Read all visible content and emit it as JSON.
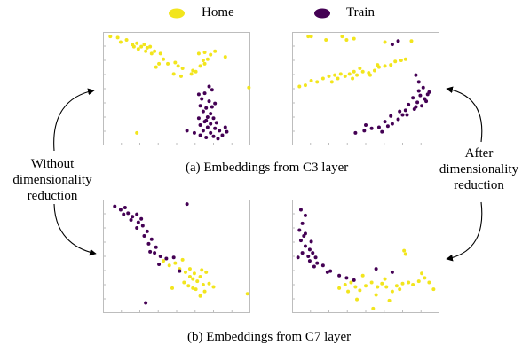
{
  "legend": {
    "home_label": "Home",
    "train_label": "Train",
    "home_color": "#F2E51D",
    "train_color": "#440154"
  },
  "captions": {
    "a": "(a) Embeddings from C3 layer",
    "b": "(b) Embeddings from C7 layer"
  },
  "left_label": [
    "Without",
    "dimensionality",
    "reduction"
  ],
  "right_label": [
    "After",
    "dimensionality",
    "reduction"
  ],
  "chart_data": [
    {
      "type": "scatter",
      "panel": "C3 without dimensionality reduction",
      "xlim": [
        0,
        10
      ],
      "ylim": [
        0,
        10
      ],
      "grid": false,
      "series": [
        {
          "name": "Home",
          "color": "#F2E51D",
          "points": [
            [
              0.5,
              9.6
            ],
            [
              1,
              9.5
            ],
            [
              1.2,
              9.1
            ],
            [
              1.6,
              9.3
            ],
            [
              2,
              8.9
            ],
            [
              2.1,
              8.7
            ],
            [
              2.3,
              9
            ],
            [
              2.4,
              8.5
            ],
            [
              2.6,
              8.7
            ],
            [
              2.8,
              8.9
            ],
            [
              3,
              8.6
            ],
            [
              3.2,
              8.7
            ],
            [
              2.9,
              8.3
            ],
            [
              3.3,
              8.1
            ],
            [
              3.5,
              8.3
            ],
            [
              3.9,
              8.1
            ],
            [
              4.1,
              7.6
            ],
            [
              3.8,
              7.2
            ],
            [
              3.6,
              6.9
            ],
            [
              4.4,
              7.2
            ],
            [
              4.9,
              7.3
            ],
            [
              5.1,
              7
            ],
            [
              5.4,
              6.8
            ],
            [
              4.8,
              6.3
            ],
            [
              5.3,
              6.1
            ],
            [
              6,
              6.3
            ],
            [
              6.3,
              6.5
            ],
            [
              6.6,
              7
            ],
            [
              6.9,
              7.2
            ],
            [
              7.1,
              7.6
            ],
            [
              7.3,
              8
            ],
            [
              6.9,
              8.2
            ],
            [
              6.5,
              8.1
            ],
            [
              7.6,
              8.3
            ],
            [
              8.3,
              7.8
            ],
            [
              9.9,
              5.1
            ],
            [
              2.3,
              1.1
            ],
            [
              6.1,
              6.6
            ],
            [
              6.8,
              7.5
            ]
          ]
        },
        {
          "name": "Train",
          "color": "#440154",
          "points": [
            [
              6.5,
              4.5
            ],
            [
              6.9,
              4.6
            ],
            [
              6.7,
              4.1
            ],
            [
              7.2,
              3.9
            ],
            [
              6.6,
              3.5
            ],
            [
              7,
              3.3
            ],
            [
              7.4,
              3.4
            ],
            [
              6.8,
              3
            ],
            [
              7.3,
              2.8
            ],
            [
              7.1,
              2.5
            ],
            [
              6.5,
              2.4
            ],
            [
              7.5,
              2.4
            ],
            [
              6.9,
              2.1
            ],
            [
              7.3,
              1.9
            ],
            [
              7.7,
              2
            ],
            [
              6.6,
              1.8
            ],
            [
              7.1,
              1.6
            ],
            [
              7.6,
              1.5
            ],
            [
              7.9,
              1.3
            ],
            [
              6.8,
              1.3
            ],
            [
              7.3,
              1.1
            ],
            [
              7.5,
              0.8
            ],
            [
              8.1,
              0.9
            ],
            [
              6.6,
              0.9
            ],
            [
              7,
              0.7
            ],
            [
              7.8,
              0.6
            ],
            [
              8.3,
              1.6
            ],
            [
              5.7,
              1.3
            ],
            [
              6.2,
              1.1
            ],
            [
              7.2,
              5.2
            ],
            [
              7.4,
              4.9
            ],
            [
              7.6,
              3.7
            ],
            [
              8.4,
              1.2
            ],
            [
              7,
              2.2
            ]
          ]
        }
      ]
    },
    {
      "type": "scatter",
      "panel": "C3 after dimensionality reduction",
      "xlim": [
        0,
        10
      ],
      "ylim": [
        0,
        10
      ],
      "grid": false,
      "series": [
        {
          "name": "Home",
          "color": "#F2E51D",
          "points": [
            [
              0.5,
              5.2
            ],
            [
              0.9,
              5.3
            ],
            [
              1.3,
              5.7
            ],
            [
              1.7,
              5.6
            ],
            [
              2.1,
              5.9
            ],
            [
              2.5,
              6.1
            ],
            [
              2.9,
              6.2
            ],
            [
              3.3,
              6.3
            ],
            [
              3.6,
              6.1
            ],
            [
              3.9,
              6.3
            ],
            [
              4.2,
              6.5
            ],
            [
              4.4,
              6.2
            ],
            [
              4.8,
              6.5
            ],
            [
              5.2,
              6.4
            ],
            [
              5.6,
              6.6
            ],
            [
              5.9,
              6.9
            ],
            [
              6.3,
              7
            ],
            [
              6.7,
              7.1
            ],
            [
              7,
              7.4
            ],
            [
              7.4,
              7.5
            ],
            [
              7.7,
              7.6
            ],
            [
              5.3,
              6.2
            ],
            [
              4.6,
              6.8
            ],
            [
              3.1,
              5.9
            ],
            [
              2.7,
              5.6
            ],
            [
              1.1,
              9.6
            ],
            [
              1.3,
              9.6
            ],
            [
              3.4,
              9.6
            ],
            [
              3.7,
              9.3
            ],
            [
              4.2,
              9.4
            ],
            [
              6.3,
              9.1
            ],
            [
              2.3,
              9.3
            ],
            [
              8.1,
              9.2
            ],
            [
              5.8,
              7.1
            ],
            [
              4.1,
              5.9
            ]
          ]
        },
        {
          "name": "Train",
          "color": "#440154",
          "points": [
            [
              8.4,
              6.2
            ],
            [
              8.6,
              5.6
            ],
            [
              8.9,
              5.1
            ],
            [
              9.3,
              4.7
            ],
            [
              8.7,
              4.4
            ],
            [
              8.2,
              4.2
            ],
            [
              9,
              4.1
            ],
            [
              8.5,
              3.8
            ],
            [
              7.9,
              3.6
            ],
            [
              8.4,
              3.4
            ],
            [
              7.7,
              3.1
            ],
            [
              7.3,
              3
            ],
            [
              7.8,
              2.7
            ],
            [
              6.7,
              2.6
            ],
            [
              7.2,
              2.3
            ],
            [
              6.3,
              2.1
            ],
            [
              6.8,
              1.9
            ],
            [
              5.9,
              1.6
            ],
            [
              5.4,
              1.5
            ],
            [
              4.9,
              1.3
            ],
            [
              6.1,
              1.2
            ],
            [
              6.8,
              8.9
            ],
            [
              7.2,
              9.2
            ],
            [
              8.6,
              4.8
            ],
            [
              9.1,
              3.9
            ],
            [
              7.5,
              2.7
            ],
            [
              6.5,
              1.7
            ],
            [
              5,
              1.8
            ],
            [
              4.3,
              1.1
            ],
            [
              8.3,
              3.2
            ],
            [
              8.8,
              3.5
            ],
            [
              9.2,
              4.5
            ]
          ]
        }
      ]
    },
    {
      "type": "scatter",
      "panel": "C7 without dimensionality reduction",
      "xlim": [
        0,
        10
      ],
      "ylim": [
        0,
        10
      ],
      "grid": false,
      "series": [
        {
          "name": "Home",
          "color": "#F2E51D",
          "points": [
            [
              4.1,
              4.6
            ],
            [
              4.5,
              4.2
            ],
            [
              4.9,
              4.4
            ],
            [
              5.2,
              3.9
            ],
            [
              5.6,
              3.6
            ],
            [
              5.9,
              3.9
            ],
            [
              6.2,
              3.5
            ],
            [
              6.6,
              3.2
            ],
            [
              6.1,
              3
            ],
            [
              6.4,
              2.8
            ],
            [
              6.8,
              2.5
            ],
            [
              7.2,
              2.6
            ],
            [
              5.8,
              2.4
            ],
            [
              6.3,
              2.1
            ],
            [
              6.9,
              1.9
            ],
            [
              7.5,
              2.3
            ],
            [
              5.5,
              2.7
            ],
            [
              4.7,
              2.2
            ],
            [
              6.6,
              1.5
            ],
            [
              9.8,
              1.7
            ],
            [
              7,
              3.6
            ],
            [
              5.9,
              3.2
            ],
            [
              6.7,
              3.8
            ],
            [
              5.4,
              4.7
            ],
            [
              6.1,
              2.2
            ]
          ]
        },
        {
          "name": "Train",
          "color": "#440154",
          "points": [
            [
              0.8,
              9.4
            ],
            [
              1.2,
              9.1
            ],
            [
              1.5,
              9.3
            ],
            [
              1.7,
              8.8
            ],
            [
              2,
              8.5
            ],
            [
              2.3,
              8.7
            ],
            [
              1.9,
              8.2
            ],
            [
              2.4,
              8
            ],
            [
              2.7,
              7.7
            ],
            [
              2.3,
              7.5
            ],
            [
              3,
              7.2
            ],
            [
              2.8,
              6.8
            ],
            [
              3.3,
              6.5
            ],
            [
              3.1,
              6.1
            ],
            [
              3.6,
              5.8
            ],
            [
              3.5,
              5.3
            ],
            [
              3.9,
              5
            ],
            [
              4.3,
              4.8
            ],
            [
              4.8,
              4.9
            ],
            [
              2.6,
              8.3
            ],
            [
              1.4,
              8.7
            ],
            [
              5.7,
              9.6
            ],
            [
              2.9,
              0.9
            ],
            [
              5.2,
              3.7
            ],
            [
              3.2,
              5.4
            ],
            [
              3.8,
              4.3
            ]
          ]
        }
      ]
    },
    {
      "type": "scatter",
      "panel": "C7 after dimensionality reduction",
      "xlim": [
        0,
        10
      ],
      "ylim": [
        0,
        10
      ],
      "grid": false,
      "series": [
        {
          "name": "Home",
          "color": "#F2E51D",
          "points": [
            [
              3.2,
              2.2
            ],
            [
              3.6,
              2.5
            ],
            [
              4,
              2.7
            ],
            [
              4.3,
              2.3
            ],
            [
              4.6,
              2
            ],
            [
              5,
              2.4
            ],
            [
              5.4,
              2.7
            ],
            [
              5.8,
              2.3
            ],
            [
              6.1,
              2.6
            ],
            [
              6.4,
              2.3
            ],
            [
              6.8,
              1.9
            ],
            [
              7.1,
              2.4
            ],
            [
              7.5,
              2.6
            ],
            [
              7.9,
              2.7
            ],
            [
              8.2,
              2.5
            ],
            [
              8.6,
              2.8
            ],
            [
              9,
              3.1
            ],
            [
              9.3,
              2.7
            ],
            [
              8.8,
              3.5
            ],
            [
              7.7,
              5.2
            ],
            [
              7.6,
              5.5
            ],
            [
              5.7,
              1.6
            ],
            [
              4.4,
              1.2
            ],
            [
              5.5,
              0.4
            ],
            [
              6.3,
              3
            ],
            [
              4.8,
              3.3
            ],
            [
              3.8,
              1.9
            ],
            [
              7.3,
              2.1
            ],
            [
              9.6,
              2.1
            ],
            [
              6.6,
              1.1
            ]
          ]
        },
        {
          "name": "Train",
          "color": "#440154",
          "points": [
            [
              0.6,
              9.1
            ],
            [
              0.9,
              8.6
            ],
            [
              0.7,
              7.9
            ],
            [
              0.5,
              7.3
            ],
            [
              0.9,
              7
            ],
            [
              0.6,
              6.4
            ],
            [
              0.9,
              5.9
            ],
            [
              1.2,
              5.6
            ],
            [
              0.7,
              5.3
            ],
            [
              1.1,
              5
            ],
            [
              1.4,
              5.3
            ],
            [
              1.6,
              4.9
            ],
            [
              1.2,
              4.6
            ],
            [
              1.7,
              4.4
            ],
            [
              2.1,
              4.2
            ],
            [
              2.6,
              3.7
            ],
            [
              3.2,
              3.3
            ],
            [
              3.7,
              3.1
            ],
            [
              4.2,
              2.9
            ],
            [
              5.7,
              3.9
            ],
            [
              6.8,
              3.6
            ],
            [
              1.3,
              6.3
            ],
            [
              0.8,
              6.8
            ],
            [
              2.4,
              3.6
            ],
            [
              1.5,
              4.1
            ],
            [
              0.4,
              4.9
            ]
          ]
        }
      ]
    }
  ]
}
